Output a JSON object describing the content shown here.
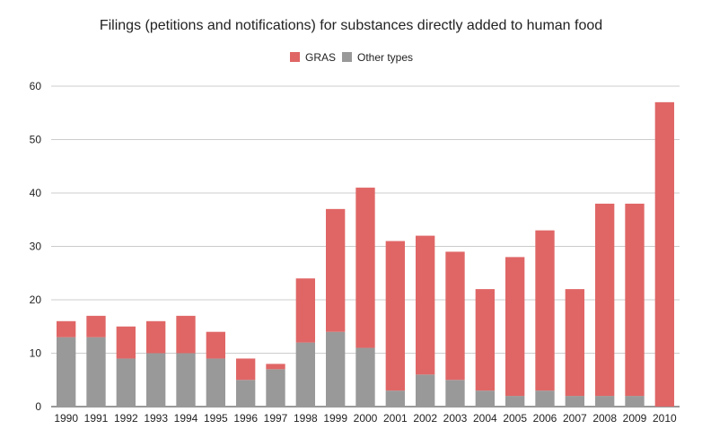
{
  "chart_data": {
    "type": "bar",
    "stacked": true,
    "title": "Filings (petitions and notifications) for substances directly added to human food",
    "xlabel": "",
    "ylabel": "",
    "ylim": [
      0,
      60
    ],
    "yticks": [
      0,
      10,
      20,
      30,
      40,
      50,
      60
    ],
    "grid": true,
    "legend_position": "top-center",
    "categories": [
      "1990",
      "1991",
      "1992",
      "1993",
      "1994",
      "1995",
      "1996",
      "1997",
      "1998",
      "1999",
      "2000",
      "2001",
      "2002",
      "2003",
      "2004",
      "2005",
      "2006",
      "2007",
      "2008",
      "2009",
      "2010"
    ],
    "series": [
      {
        "name": "Other types",
        "color": "#999999",
        "values": [
          13,
          13,
          9,
          10,
          10,
          9,
          5,
          7,
          12,
          14,
          11,
          3,
          6,
          5,
          3,
          2,
          3,
          2,
          2,
          2,
          0
        ]
      },
      {
        "name": "GRAS",
        "color": "#e06666",
        "values": [
          3,
          4,
          6,
          6,
          7,
          5,
          4,
          1,
          12,
          23,
          30,
          28,
          26,
          24,
          19,
          26,
          30,
          20,
          36,
          36,
          57
        ]
      }
    ],
    "legend_order": [
      "GRAS",
      "Other types"
    ]
  }
}
